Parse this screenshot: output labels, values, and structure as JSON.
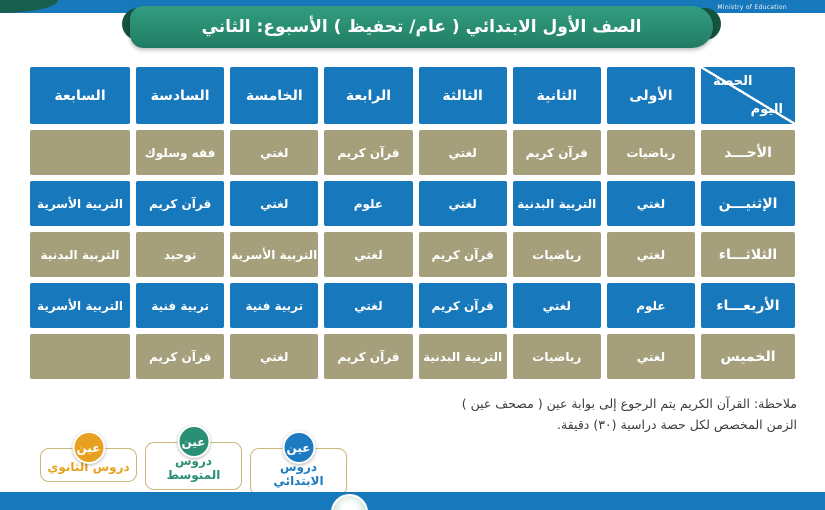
{
  "top_bar": {
    "ministry_label": "Ministry of Education"
  },
  "banner": {
    "title": "الصف الأول الابتدائي ( عام/ تحفيظ ) الأسبوع: الثاني"
  },
  "table": {
    "corner": {
      "top": "الحصة",
      "bottom": "اليوم"
    },
    "periods": [
      "الأولى",
      "الثانية",
      "الثالثة",
      "الرابعة",
      "الخامسة",
      "السادسة",
      "السابعة"
    ],
    "days": [
      {
        "name": "الأحـــد",
        "subjects": [
          "رياضيات",
          "قرآن كريم",
          "لغتي",
          "قرآن كريم",
          "لغتي",
          "فقه وسلوك",
          ""
        ]
      },
      {
        "name": "الإثنيـــن",
        "subjects": [
          "لغتي",
          "التربية البدنية",
          "لغتي",
          "علوم",
          "لغتي",
          "قرآن كريم",
          "التربية الأسرية"
        ]
      },
      {
        "name": "الثلاثـــاء",
        "subjects": [
          "لغتي",
          "رياضيات",
          "قرآن كريم",
          "لغتي",
          "التربية الأسرية",
          "توحيد",
          "التربية البدنية"
        ]
      },
      {
        "name": "الأربعـــاء",
        "subjects": [
          "علوم",
          "لغتي",
          "قرآن كريم",
          "لغتي",
          "تربية فنية",
          "تربية فنية",
          "التربية الأسرية"
        ]
      },
      {
        "name": "الخميس",
        "subjects": [
          "لغتي",
          "رياضيات",
          "التربية البدنية",
          "قرآن كريم",
          "لغتي",
          "قرآن كريم",
          ""
        ]
      }
    ]
  },
  "notes": {
    "line1": "ملاحظة: القرآن الكريم يتم الرجوع إلى بوابة عين ( مصحف عين )",
    "line2": "الزمن المخصص لكل حصة دراسية (٣٠) دقيقة."
  },
  "badges": [
    {
      "circle_label": "عين",
      "label": "دروس الابتدائي",
      "color": "#1d7cc1"
    },
    {
      "circle_label": "عين",
      "label": "دروس المتوسط",
      "color": "#2b8f75"
    },
    {
      "circle_label": "عين",
      "label": "دروس الثانوي",
      "color": "#e7a01f"
    }
  ],
  "colors": {
    "cell_blue": "#1878bc",
    "cell_tan": "#a5a07b",
    "banner_green": "#27876d",
    "badge_border": "#cdb67a"
  }
}
